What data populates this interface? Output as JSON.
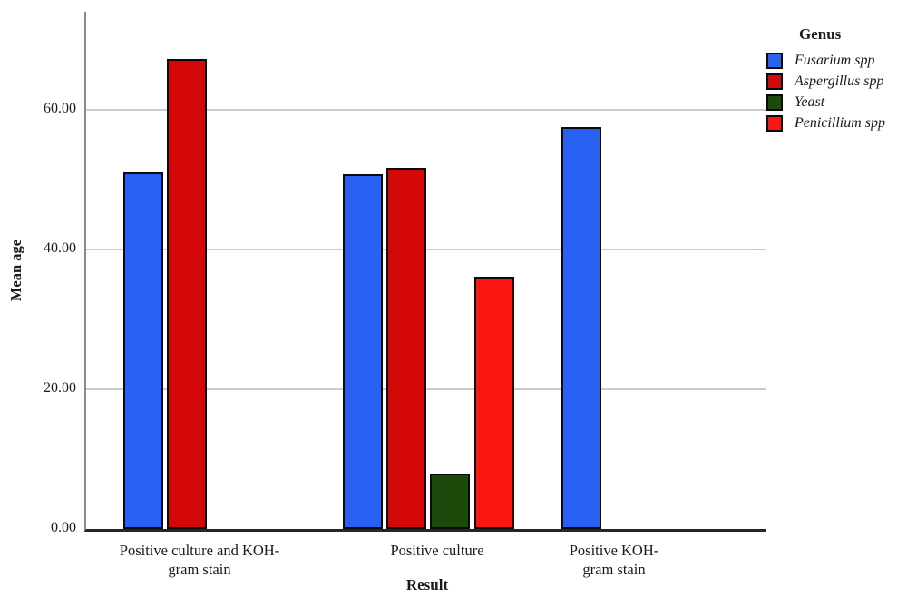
{
  "chart_data": {
    "type": "bar",
    "title": "",
    "xlabel": "Result",
    "ylabel": "Mean age",
    "ylim": [
      0,
      74
    ],
    "yticks": [
      0,
      20,
      40,
      60
    ],
    "ytick_labels": [
      "0.00",
      "20.00",
      "40.00",
      "60.00"
    ],
    "grid": "horizontal gridlines at 20/40/60, none at 0",
    "legend_title": "Genus",
    "legend_position": "outside-top-right",
    "categories": [
      "Positive culture and KOH-gram stain",
      "Positive culture",
      "Positive KOH-gram stain"
    ],
    "category_label_lines": [
      [
        "Positive culture and KOH-",
        "gram stain"
      ],
      [
        "Positive culture"
      ],
      [
        "Positive KOH-",
        "gram stain"
      ]
    ],
    "series": [
      {
        "name": "Fusarium spp",
        "color": "#2962f3",
        "values": [
          51.0,
          50.8,
          57.5
        ]
      },
      {
        "name": "Aspergillus spp",
        "color": "#d40808",
        "values": [
          67.3,
          51.7,
          null
        ]
      },
      {
        "name": "Yeast",
        "color": "#1b4a0a",
        "values": [
          null,
          7.9,
          null
        ]
      },
      {
        "name": "Penicillium spp",
        "color": "#fb1710",
        "values": [
          null,
          36.1,
          null
        ]
      }
    ],
    "colors": {
      "bar_border": "#0a0a0a",
      "gridline": "#c6cdcc",
      "y_axis_line": "#7e8e8c",
      "baseline": "#1c2a28",
      "text": "#1a1a1a",
      "background": "#ffffff"
    }
  }
}
